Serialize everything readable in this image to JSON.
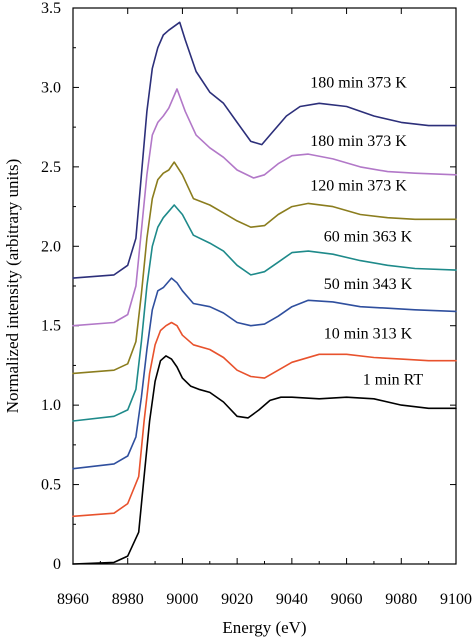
{
  "chart_data": {
    "type": "line",
    "title": "",
    "xlabel": "Energy (eV)",
    "ylabel": "Normalized intensity (arbitrary units)",
    "xlim": [
      8960,
      9100
    ],
    "ylim": [
      0,
      3.5
    ],
    "xticks": [
      "8960",
      "8980",
      "9000",
      "9020",
      "9040",
      "9060",
      "9080",
      "9100"
    ],
    "yticks": [
      "0",
      "0.5",
      "1.0",
      "1.5",
      "2.0",
      "2.5",
      "3.0",
      "3.5"
    ],
    "grid": false,
    "legend": "inline labels at right of each curve",
    "series": [
      {
        "name": "1 min RT",
        "color": "#000000",
        "x": [
          8960,
          8975,
          8980,
          8984,
          8986,
          8988,
          8990,
          8992,
          8994,
          8996,
          8998,
          9000,
          9003,
          9006,
          9010,
          9015,
          9020,
          9024,
          9028,
          9032,
          9036,
          9040,
          9050,
          9060,
          9070,
          9080,
          9090,
          9100
        ],
        "y": [
          0.0,
          0.01,
          0.05,
          0.2,
          0.55,
          0.9,
          1.15,
          1.28,
          1.31,
          1.29,
          1.24,
          1.17,
          1.12,
          1.1,
          1.08,
          1.02,
          0.93,
          0.92,
          0.97,
          1.03,
          1.05,
          1.05,
          1.04,
          1.05,
          1.04,
          1.0,
          0.98,
          0.98
        ]
      },
      {
        "name": "10 min 313 K",
        "color": "#e8522d",
        "x": [
          8960,
          8975,
          8980,
          8984,
          8986,
          8988,
          8990,
          8992,
          8994,
          8996,
          8998,
          9000,
          9004,
          9010,
          9015,
          9020,
          9025,
          9030,
          9035,
          9040,
          9050,
          9060,
          9070,
          9080,
          9090,
          9100
        ],
        "y": [
          0.3,
          0.32,
          0.38,
          0.55,
          0.9,
          1.2,
          1.38,
          1.47,
          1.5,
          1.52,
          1.5,
          1.44,
          1.38,
          1.35,
          1.3,
          1.22,
          1.18,
          1.17,
          1.22,
          1.27,
          1.32,
          1.32,
          1.3,
          1.29,
          1.28,
          1.28
        ]
      },
      {
        "name": "50 min 343 K",
        "color": "#2f4f9e",
        "x": [
          8960,
          8975,
          8980,
          8983,
          8985,
          8987,
          8989,
          8991,
          8993,
          8996,
          8998,
          9000,
          9004,
          9010,
          9015,
          9020,
          9025,
          9030,
          9035,
          9040,
          9046,
          9055,
          9065,
          9075,
          9085,
          9100
        ],
        "y": [
          0.6,
          0.63,
          0.68,
          0.8,
          1.05,
          1.35,
          1.6,
          1.72,
          1.74,
          1.8,
          1.77,
          1.72,
          1.64,
          1.62,
          1.58,
          1.52,
          1.5,
          1.51,
          1.56,
          1.62,
          1.66,
          1.65,
          1.62,
          1.61,
          1.6,
          1.59
        ]
      },
      {
        "name": "60 min 363 K",
        "color": "#1e8a8a",
        "x": [
          8960,
          8975,
          8980,
          8983,
          8985,
          8987,
          8989,
          8991,
          8993,
          8995,
          8997,
          9000,
          9004,
          9010,
          9015,
          9020,
          9025,
          9030,
          9035,
          9040,
          9046,
          9055,
          9065,
          9075,
          9085,
          9100
        ],
        "y": [
          0.9,
          0.93,
          0.97,
          1.1,
          1.4,
          1.75,
          2.0,
          2.12,
          2.18,
          2.22,
          2.26,
          2.2,
          2.07,
          2.02,
          1.97,
          1.88,
          1.82,
          1.84,
          1.9,
          1.96,
          1.97,
          1.95,
          1.91,
          1.88,
          1.86,
          1.85
        ]
      },
      {
        "name": "120 min 373 K",
        "color": "#8b7d1e",
        "x": [
          8960,
          8975,
          8980,
          8983,
          8985,
          8987,
          8989,
          8991,
          8993,
          8995,
          8997,
          9000,
          9004,
          9010,
          9015,
          9020,
          9025,
          9030,
          9035,
          9040,
          9046,
          9055,
          9065,
          9075,
          9085,
          9100
        ],
        "y": [
          1.2,
          1.22,
          1.26,
          1.4,
          1.7,
          2.05,
          2.3,
          2.42,
          2.46,
          2.48,
          2.53,
          2.45,
          2.3,
          2.26,
          2.21,
          2.16,
          2.12,
          2.13,
          2.2,
          2.25,
          2.27,
          2.25,
          2.2,
          2.18,
          2.17,
          2.17
        ]
      },
      {
        "name": "180 min 373 K",
        "color": "#b278c8",
        "x": [
          8960,
          8975,
          8980,
          8983,
          8985,
          8987,
          8989,
          8991,
          8993,
          8995,
          8998,
          9001,
          9005,
          9010,
          9015,
          9020,
          9026,
          9030,
          9035,
          9040,
          9046,
          9055,
          9065,
          9075,
          9085,
          9100
        ],
        "y": [
          1.5,
          1.52,
          1.57,
          1.75,
          2.1,
          2.45,
          2.7,
          2.78,
          2.82,
          2.87,
          2.99,
          2.85,
          2.7,
          2.62,
          2.56,
          2.48,
          2.43,
          2.45,
          2.52,
          2.57,
          2.58,
          2.55,
          2.5,
          2.47,
          2.46,
          2.45
        ]
      },
      {
        "name": "180 min 373 K",
        "color": "#2c2f7a",
        "x": [
          8960,
          8975,
          8980,
          8983,
          8985,
          8987,
          8989,
          8991,
          8993,
          8995,
          8999,
          9001,
          9005,
          9010,
          9015,
          9020,
          9025,
          9029,
          9033,
          9038,
          9043,
          9050,
          9060,
          9070,
          9080,
          9090,
          9100
        ],
        "y": [
          1.8,
          1.82,
          1.88,
          2.05,
          2.45,
          2.85,
          3.12,
          3.25,
          3.33,
          3.36,
          3.41,
          3.3,
          3.1,
          2.97,
          2.9,
          2.78,
          2.66,
          2.64,
          2.72,
          2.82,
          2.88,
          2.9,
          2.88,
          2.82,
          2.78,
          2.76,
          2.76
        ]
      }
    ],
    "labels": [
      {
        "text": "1 min RT",
        "x": 9088,
        "y": 1.13
      },
      {
        "text": "10 min 313 K",
        "x": 9084,
        "y": 1.42
      },
      {
        "text": "50 min 343 K",
        "x": 9084,
        "y": 1.73
      },
      {
        "text": "60 min 363 K",
        "x": 9084,
        "y": 2.03
      },
      {
        "text": "120 min 373 K",
        "x": 9082,
        "y": 2.35
      },
      {
        "text": "180 min 373 K",
        "x": 9082,
        "y": 2.63
      },
      {
        "text": "180 min 373 K",
        "x": 9082,
        "y": 3.0
      }
    ]
  }
}
